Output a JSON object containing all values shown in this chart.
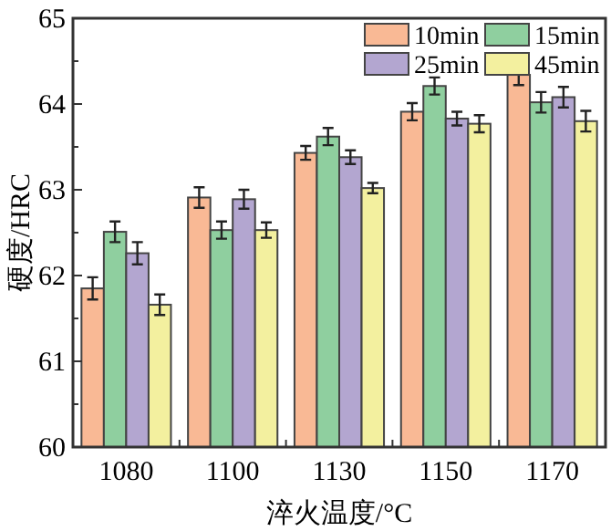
{
  "chart_data": {
    "type": "bar",
    "xlabel": "淬火温度/°C",
    "ylabel": "硬度/HRC",
    "categories": [
      "1080",
      "1100",
      "1130",
      "1150",
      "1170"
    ],
    "series": [
      {
        "name": "10min",
        "color": "#f9b995",
        "values": [
          61.85,
          62.91,
          63.43,
          63.91,
          64.34
        ],
        "errors": [
          0.13,
          0.12,
          0.08,
          0.1,
          0.12
        ]
      },
      {
        "name": "15min",
        "color": "#8fcf9f",
        "values": [
          62.51,
          62.53,
          63.62,
          64.21,
          64.02
        ],
        "errors": [
          0.12,
          0.1,
          0.1,
          0.1,
          0.12
        ]
      },
      {
        "name": "25min",
        "color": "#b3a6d0",
        "values": [
          62.26,
          62.89,
          63.38,
          63.83,
          64.08
        ],
        "errors": [
          0.13,
          0.11,
          0.08,
          0.08,
          0.12
        ]
      },
      {
        "name": "45min",
        "color": "#f3f09f",
        "values": [
          61.66,
          62.53,
          63.02,
          63.77,
          63.8
        ],
        "errors": [
          0.12,
          0.09,
          0.06,
          0.1,
          0.12
        ]
      }
    ],
    "ylim": [
      60,
      65
    ],
    "yticks": [
      60,
      {
        "value": 60.5,
        "label": null
      },
      61,
      {
        "value": 61.5,
        "label": null
      },
      62,
      {
        "value": 62.5,
        "label": null
      },
      63,
      {
        "value": 63.5,
        "label": null
      },
      64,
      {
        "value": 64.5,
        "label": null
      },
      65
    ],
    "legend": "top right",
    "grid": false
  }
}
